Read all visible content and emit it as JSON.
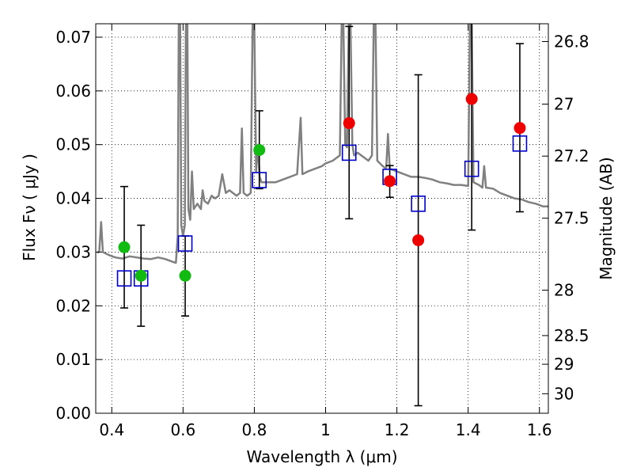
{
  "chart_data": {
    "type": "scatter",
    "xlabel": "Wavelength  λ (μm)",
    "ylabel": "Flux  Fν ( μJy )",
    "ylabel_right": "Magnitude (AB)",
    "xlim": [
      0.355,
      1.625
    ],
    "ylim": [
      0.0,
      0.0725
    ],
    "grid": true,
    "x_ticks": [
      {
        "value": 0.4,
        "label": "0.4"
      },
      {
        "value": 0.6,
        "label": "0.6"
      },
      {
        "value": 0.8,
        "label": "0.8"
      },
      {
        "value": 1.0,
        "label": "1"
      },
      {
        "value": 1.2,
        "label": "1.2"
      },
      {
        "value": 1.4,
        "label": "1.4"
      },
      {
        "value": 1.6,
        "label": "1.6"
      }
    ],
    "y_ticks": [
      {
        "value": 0.0,
        "label": "0.00"
      },
      {
        "value": 0.01,
        "label": "0.01"
      },
      {
        "value": 0.02,
        "label": "0.02"
      },
      {
        "value": 0.03,
        "label": "0.03"
      },
      {
        "value": 0.04,
        "label": "0.04"
      },
      {
        "value": 0.05,
        "label": "0.05"
      },
      {
        "value": 0.06,
        "label": "0.06"
      },
      {
        "value": 0.07,
        "label": "0.07"
      }
    ],
    "right_ticks": [
      {
        "mag": 26.8,
        "label": "26.8"
      },
      {
        "mag": 27.0,
        "label": "27"
      },
      {
        "mag": 27.2,
        "label": "27.2"
      },
      {
        "mag": 27.5,
        "label": "27.5"
      },
      {
        "mag": 28.0,
        "label": "28"
      },
      {
        "mag": 28.5,
        "label": "28.5"
      },
      {
        "mag": 29.0,
        "label": "29"
      },
      {
        "mag": 30.0,
        "label": "30"
      }
    ],
    "colors": {
      "model_spectrum": "#808080",
      "green_points": "#11bb11",
      "red_points": "#ee0000",
      "model_photometry": "#0000cc",
      "error_bars": "#000000",
      "grid": "#000000"
    },
    "series": [
      {
        "kind": "line",
        "points": [
          [
            0.36,
            0.0298
          ],
          [
            0.365,
            0.0302
          ],
          [
            0.37,
            0.0356
          ],
          [
            0.375,
            0.03
          ],
          [
            0.39,
            0.0295
          ],
          [
            0.41,
            0.029
          ],
          [
            0.43,
            0.0288
          ],
          [
            0.45,
            0.0292
          ],
          [
            0.47,
            0.029
          ],
          [
            0.49,
            0.0288
          ],
          [
            0.51,
            0.0287
          ],
          [
            0.53,
            0.029
          ],
          [
            0.55,
            0.0287
          ],
          [
            0.57,
            0.0282
          ],
          [
            0.58,
            0.028
          ],
          [
            0.585,
            0.033
          ],
          [
            0.588,
            0.0723
          ],
          [
            0.592,
            0.0723
          ],
          [
            0.595,
            0.035
          ],
          [
            0.6,
            0.033
          ],
          [
            0.605,
            0.035
          ],
          [
            0.608,
            0.0723
          ],
          [
            0.612,
            0.0723
          ],
          [
            0.615,
            0.038
          ],
          [
            0.62,
            0.036
          ],
          [
            0.625,
            0.045
          ],
          [
            0.63,
            0.038
          ],
          [
            0.64,
            0.039
          ],
          [
            0.65,
            0.038
          ],
          [
            0.655,
            0.0415
          ],
          [
            0.66,
            0.0395
          ],
          [
            0.67,
            0.039
          ],
          [
            0.68,
            0.0405
          ],
          [
            0.69,
            0.04
          ],
          [
            0.7,
            0.0405
          ],
          [
            0.71,
            0.0445
          ],
          [
            0.72,
            0.041
          ],
          [
            0.73,
            0.0415
          ],
          [
            0.74,
            0.041
          ],
          [
            0.75,
            0.0405
          ],
          [
            0.76,
            0.041
          ],
          [
            0.765,
            0.053
          ],
          [
            0.77,
            0.041
          ],
          [
            0.78,
            0.0405
          ],
          [
            0.79,
            0.041
          ],
          [
            0.795,
            0.0723
          ],
          [
            0.8,
            0.0723
          ],
          [
            0.805,
            0.045
          ],
          [
            0.81,
            0.05
          ],
          [
            0.815,
            0.044
          ],
          [
            0.82,
            0.043
          ],
          [
            0.84,
            0.043
          ],
          [
            0.86,
            0.043
          ],
          [
            0.88,
            0.0435
          ],
          [
            0.9,
            0.044
          ],
          [
            0.92,
            0.0445
          ],
          [
            0.93,
            0.055
          ],
          [
            0.935,
            0.0445
          ],
          [
            0.95,
            0.045
          ],
          [
            0.97,
            0.0455
          ],
          [
            0.99,
            0.046
          ],
          [
            1.0,
            0.0465
          ],
          [
            1.02,
            0.047
          ],
          [
            1.04,
            0.048
          ],
          [
            1.045,
            0.0723
          ],
          [
            1.05,
            0.0723
          ],
          [
            1.055,
            0.05
          ],
          [
            1.06,
            0.0495
          ],
          [
            1.065,
            0.0723
          ],
          [
            1.07,
            0.0723
          ],
          [
            1.075,
            0.05
          ],
          [
            1.08,
            0.048
          ],
          [
            1.09,
            0.0485
          ],
          [
            1.1,
            0.048
          ],
          [
            1.12,
            0.047
          ],
          [
            1.13,
            0.048
          ],
          [
            1.135,
            0.0723
          ],
          [
            1.14,
            0.0723
          ],
          [
            1.145,
            0.047
          ],
          [
            1.16,
            0.046
          ],
          [
            1.17,
            0.0455
          ],
          [
            1.175,
            0.052
          ],
          [
            1.18,
            0.0455
          ],
          [
            1.2,
            0.045
          ],
          [
            1.22,
            0.0445
          ],
          [
            1.24,
            0.044
          ],
          [
            1.26,
            0.044
          ],
          [
            1.28,
            0.0438
          ],
          [
            1.3,
            0.0435
          ],
          [
            1.32,
            0.043
          ],
          [
            1.34,
            0.0428
          ],
          [
            1.36,
            0.0425
          ],
          [
            1.38,
            0.0425
          ],
          [
            1.4,
            0.0423
          ],
          [
            1.405,
            0.0723
          ],
          [
            1.41,
            0.0723
          ],
          [
            1.415,
            0.043
          ],
          [
            1.43,
            0.0425
          ],
          [
            1.44,
            0.042
          ],
          [
            1.445,
            0.046
          ],
          [
            1.45,
            0.042
          ],
          [
            1.47,
            0.0418
          ],
          [
            1.49,
            0.041
          ],
          [
            1.51,
            0.0405
          ],
          [
            1.53,
            0.04
          ],
          [
            1.55,
            0.0398
          ],
          [
            1.57,
            0.0393
          ],
          [
            1.59,
            0.039
          ],
          [
            1.61,
            0.0385
          ],
          [
            1.625,
            0.0385
          ]
        ]
      },
      {
        "kind": "scatter-errorbar",
        "points": [
          {
            "x": 0.435,
            "y": 0.0309,
            "yerr": [
              0.0196,
              0.0422
            ]
          },
          {
            "x": 0.482,
            "y": 0.0256,
            "yerr": [
              0.0162,
              0.035
            ]
          },
          {
            "x": 0.606,
            "y": 0.0256,
            "yerr": [
              0.0181,
              0.033
            ]
          },
          {
            "x": 0.814,
            "y": 0.049,
            "yerr": [
              0.0418,
              0.0563
            ]
          }
        ]
      },
      {
        "kind": "scatter-errorbar",
        "points": [
          {
            "x": 1.066,
            "y": 0.054,
            "yerr": [
              0.0362,
              0.072
            ]
          },
          {
            "x": 1.18,
            "y": 0.0432,
            "yerr": [
              0.0402,
              0.0461
            ]
          },
          {
            "x": 1.26,
            "y": 0.0322,
            "yerr": [
              0.0014,
              0.063
            ]
          },
          {
            "x": 1.41,
            "y": 0.0585,
            "yerr": [
              0.0341,
              0.0728
            ]
          },
          {
            "x": 1.545,
            "y": 0.0531,
            "yerr": [
              0.0375,
              0.0688
            ]
          }
        ]
      },
      {
        "kind": "scatter",
        "marker": "square",
        "points": [
          {
            "x": 0.435,
            "y": 0.0251
          },
          {
            "x": 0.482,
            "y": 0.0251
          },
          {
            "x": 0.606,
            "y": 0.0316
          },
          {
            "x": 0.814,
            "y": 0.0434
          },
          {
            "x": 1.066,
            "y": 0.0485
          },
          {
            "x": 1.18,
            "y": 0.044
          },
          {
            "x": 1.26,
            "y": 0.039
          },
          {
            "x": 1.41,
            "y": 0.0455
          },
          {
            "x": 1.545,
            "y": 0.0502
          }
        ]
      }
    ]
  }
}
